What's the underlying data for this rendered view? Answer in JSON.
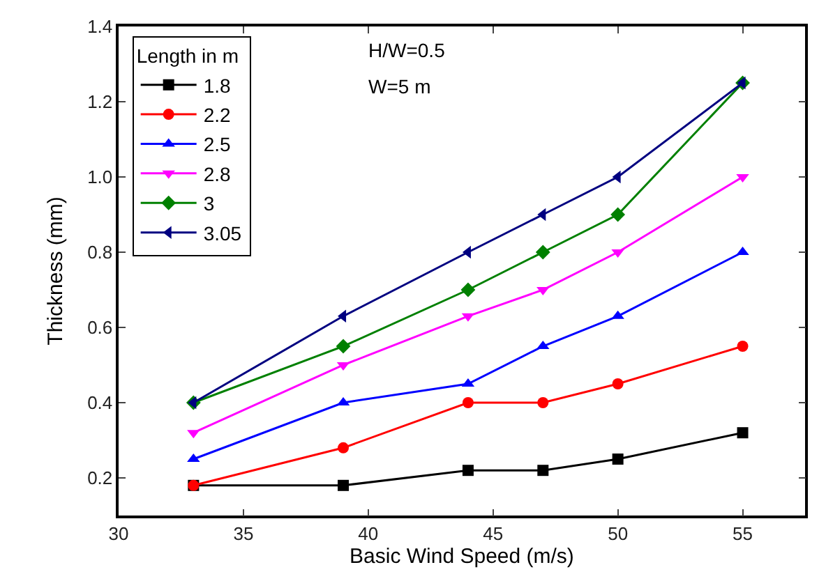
{
  "chart_data": {
    "type": "line",
    "xlabel": "Basic Wind Speed (m/s)",
    "ylabel": "Thickness (mm)",
    "legend_title": "Length in m",
    "legend": "top left",
    "x": [
      33,
      39,
      44,
      47,
      50,
      55
    ],
    "xlim": [
      30,
      57.5
    ],
    "xticks": [
      30,
      35,
      40,
      45,
      50,
      55
    ],
    "ylim": [
      0.1,
      1.4
    ],
    "yticks": [
      {
        "value": 0.2,
        "label": "0.2"
      },
      {
        "value": 0.4,
        "label": "0.4"
      },
      {
        "value": 0.6,
        "label": "0.6"
      },
      {
        "value": 0.8,
        "label": "0.8"
      },
      {
        "value": 1.0,
        "label": "1.0"
      },
      {
        "value": 1.2,
        "label": "1.2"
      },
      {
        "value": 1.4,
        "label": "1.4"
      }
    ],
    "grid": false,
    "annotations": [
      "H/W=0.5",
      "W=5 m"
    ],
    "series": [
      {
        "name": "1.8",
        "color": "#000000",
        "marker": "square",
        "values": [
          0.18,
          0.18,
          0.22,
          0.22,
          0.25,
          0.32
        ]
      },
      {
        "name": "2.2",
        "color": "#ff0000",
        "marker": "circle",
        "values": [
          0.18,
          0.28,
          0.4,
          0.4,
          0.45,
          0.55
        ]
      },
      {
        "name": "2.5",
        "color": "#0000ff",
        "marker": "triangle-up",
        "values": [
          0.25,
          0.4,
          0.45,
          0.55,
          0.63,
          0.8
        ]
      },
      {
        "name": "2.8",
        "color": "#ff00ff",
        "marker": "triangle-down",
        "values": [
          0.32,
          0.5,
          0.63,
          0.7,
          0.8,
          1.0
        ]
      },
      {
        "name": "3",
        "color": "#008000",
        "marker": "diamond",
        "values": [
          0.4,
          0.55,
          0.7,
          0.8,
          0.9,
          1.25
        ]
      },
      {
        "name": "3.05",
        "color": "#000080",
        "marker": "triangle-left",
        "values": [
          0.4,
          0.63,
          0.8,
          0.9,
          1.0,
          1.25
        ]
      }
    ]
  }
}
